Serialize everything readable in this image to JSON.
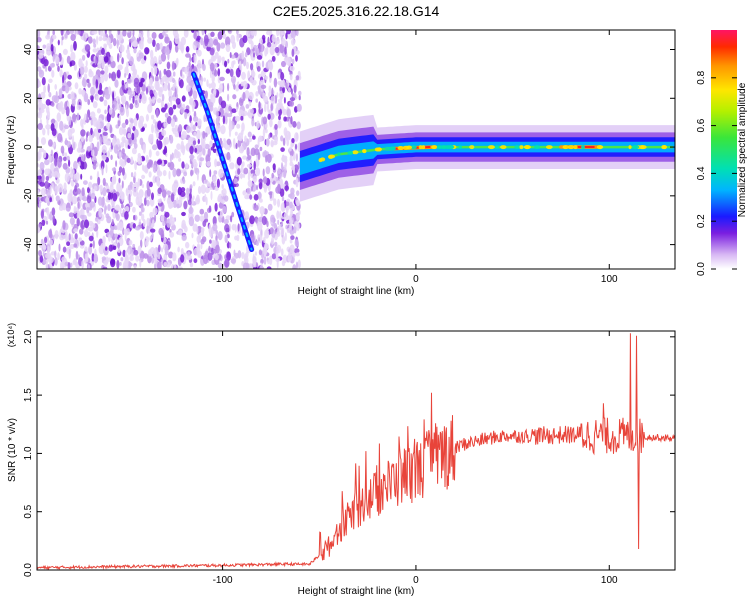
{
  "title": "C2E5.2025.316.22.18.G14",
  "chart_data": [
    {
      "type": "heatmap",
      "name": "spectrogram",
      "xlabel": "Height of straight line (km)",
      "ylabel": "Frequency (Hz)",
      "xlim": [
        -196,
        134
      ],
      "ylim": [
        -50,
        48
      ],
      "xticks": [
        -100,
        0,
        100
      ],
      "yticks": [
        -40,
        -20,
        0,
        20,
        40
      ],
      "noise_region_x": [
        -196,
        -60
      ],
      "carrier_line": [
        [
          -60,
          -8
        ],
        [
          -40,
          -3
        ],
        [
          -20,
          -1
        ],
        [
          0,
          0
        ],
        [
          50,
          0
        ],
        [
          100,
          0
        ],
        [
          134,
          0
        ]
      ],
      "carrier_hot_segments": [
        [
          -15,
          10
        ],
        [
          75,
          95
        ]
      ],
      "tilted_track": [
        [
          -115,
          30
        ],
        [
          -108,
          15
        ],
        [
          -100,
          -5
        ],
        [
          -92,
          -25
        ],
        [
          -85,
          -42
        ]
      ],
      "colorbar": {
        "label": "Normalized spectral amplitude",
        "range": [
          0.0,
          1.0
        ],
        "ticks": [
          0.0,
          0.2,
          0.4,
          0.6,
          0.8
        ]
      }
    },
    {
      "type": "line",
      "name": "snr",
      "xlabel": "Height of straight line (km)",
      "ylabel": "SNR (10 * v/v)",
      "multiplier": "(x10⁴)",
      "xlim": [
        -196,
        134
      ],
      "ylim": [
        0.0,
        2.05
      ],
      "xticks": [
        -100,
        0,
        100
      ],
      "yticks": [
        0.0,
        0.5,
        1.0,
        1.5,
        2.0
      ],
      "color": "#e8443a",
      "series": [
        {
          "name": "SNR",
          "x": [
            -196,
            -150,
            -100,
            -70,
            -55,
            -45,
            -35,
            -25,
            -15,
            -5,
            5,
            15,
            25,
            35,
            45,
            60,
            80,
            100,
            110,
            115,
            120,
            134
          ],
          "values": [
            0.02,
            0.03,
            0.04,
            0.05,
            0.05,
            0.2,
            0.45,
            0.6,
            0.72,
            0.82,
            0.9,
            1.0,
            1.08,
            1.12,
            1.15,
            1.15,
            1.16,
            1.15,
            1.15,
            1.15,
            1.14,
            1.13
          ]
        }
      ],
      "spikes": [
        {
          "x": 8,
          "value": 1.52
        },
        {
          "x": -26,
          "value": 1.02
        },
        {
          "x": 97,
          "value": 1.43
        },
        {
          "x": 111,
          "value": 2.03
        },
        {
          "x": 114,
          "value": 2.01
        },
        {
          "x": 115,
          "value": 0.18
        }
      ]
    }
  ]
}
